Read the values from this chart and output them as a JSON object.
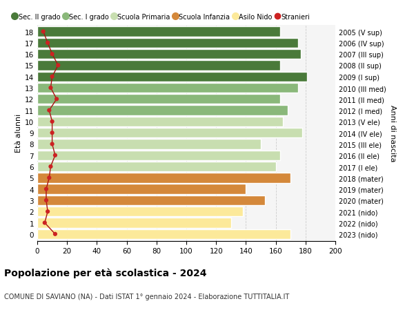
{
  "ages": [
    0,
    1,
    2,
    3,
    4,
    5,
    6,
    7,
    8,
    9,
    10,
    11,
    12,
    13,
    14,
    15,
    16,
    17,
    18
  ],
  "values": [
    170,
    130,
    138,
    153,
    140,
    170,
    160,
    163,
    150,
    178,
    165,
    168,
    163,
    175,
    181,
    163,
    177,
    175,
    163
  ],
  "bar_colors": [
    "#fce99a",
    "#fce99a",
    "#fce99a",
    "#d4883a",
    "#d4883a",
    "#d4883a",
    "#c8deb0",
    "#c8deb0",
    "#c8deb0",
    "#c8deb0",
    "#c8deb0",
    "#8ab87a",
    "#8ab87a",
    "#8ab87a",
    "#4a7a3a",
    "#4a7a3a",
    "#4a7a3a",
    "#4a7a3a",
    "#4a7a3a"
  ],
  "right_labels": [
    "2023 (nido)",
    "2022 (nido)",
    "2021 (nido)",
    "2020 (mater)",
    "2019 (mater)",
    "2018 (mater)",
    "2017 (I ele)",
    "2016 (II ele)",
    "2015 (III ele)",
    "2014 (IV ele)",
    "2013 (V ele)",
    "2012 (I med)",
    "2011 (II med)",
    "2010 (III med)",
    "2009 (I sup)",
    "2008 (II sup)",
    "2007 (III sup)",
    "2006 (IV sup)",
    "2005 (V sup)"
  ],
  "stranieri_values": [
    12,
    5,
    7,
    6,
    6,
    8,
    9,
    12,
    10,
    10,
    10,
    8,
    13,
    9,
    10,
    14,
    10,
    7,
    4
  ],
  "legend_labels": [
    "Sec. II grado",
    "Sec. I grado",
    "Scuola Primaria",
    "Scuola Infanzia",
    "Asilo Nido",
    "Stranieri"
  ],
  "legend_colors": [
    "#4a7a3a",
    "#8ab87a",
    "#c8deb0",
    "#d4883a",
    "#fce99a",
    "#cc2222"
  ],
  "title": "Popolazione per età scolastica - 2024",
  "subtitle": "COMUNE DI SAVIANO (NA) - Dati ISTAT 1° gennaio 2024 - Elaborazione TUTTITALIA.IT",
  "ylabel_left": "Età alunni",
  "ylabel_right": "Anni di nascita",
  "xlim": [
    0,
    200
  ],
  "xticks": [
    0,
    20,
    40,
    60,
    80,
    100,
    120,
    140,
    160,
    180,
    200
  ],
  "background_color": "#ffffff",
  "plot_bg_color": "#f5f5f5",
  "grid_color": "#cccccc"
}
